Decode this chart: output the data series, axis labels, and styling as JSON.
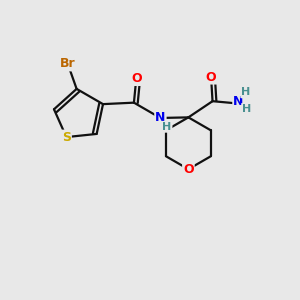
{
  "background_color": "#e8e8e8",
  "atoms": {
    "S": {
      "color": "#ccaa00"
    },
    "O": {
      "color": "#ff0000"
    },
    "N": {
      "color": "#0000ee"
    },
    "Br": {
      "color": "#bb6600"
    },
    "H": {
      "color": "#4a9090"
    }
  },
  "bond_color": "#111111",
  "figsize": [
    3.0,
    3.0
  ],
  "dpi": 100
}
